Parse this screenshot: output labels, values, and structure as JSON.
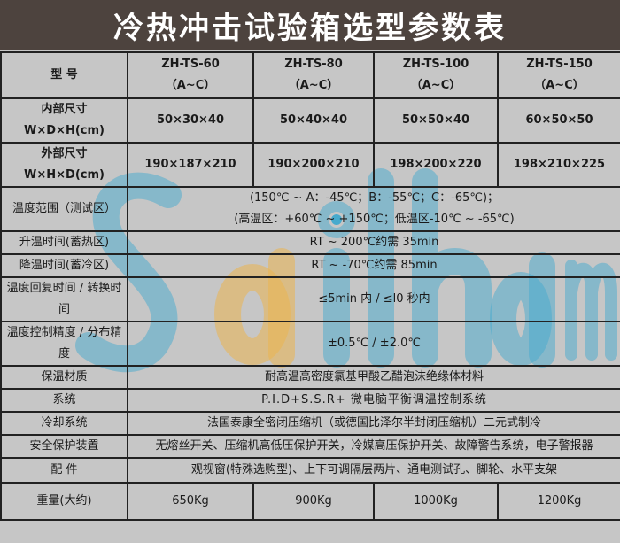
{
  "title": "冷热冲击试验箱选型参数表",
  "watermark_logo": "Sailham",
  "colors": {
    "title_bg": "#4d433e",
    "table_bg": "#c6c6c6",
    "watermark_blue": "#46aacd",
    "watermark_orange": "#ebb450"
  },
  "header": {
    "label": "型 号",
    "models": [
      {
        "name": "ZH-TS-60",
        "variant": "（A~C）"
      },
      {
        "name": "ZH-TS-80",
        "variant": "（A~C）"
      },
      {
        "name": "ZH-TS-100",
        "variant": "（A~C）"
      },
      {
        "name": "ZH-TS-150",
        "variant": "（A~C）"
      }
    ]
  },
  "inner_size": {
    "label1": "内部尺寸",
    "label2": "W×D×H(cm)",
    "values": [
      "50×30×40",
      "50×40×40",
      "50×50×40",
      "60×50×50"
    ]
  },
  "outer_size": {
    "label1": "外部尺寸",
    "label2": "W×H×D(cm)",
    "values": [
      "190×187×210",
      "190×200×210",
      "198×200×220",
      "198×210×225"
    ]
  },
  "rows": [
    {
      "label": "温度范围（测试区）",
      "lines": [
        "(150℃ ~ A：-45℃；B：-55℃；C：-65℃)；",
        "(高温区：+60℃ ~ +150℃；低温区-10℃ ~ -65℃)"
      ]
    },
    {
      "label": "升温时间(蓄热区)",
      "lines": [
        "RT ~ 200℃约需 35min"
      ]
    },
    {
      "label": "降温时间(蓄冷区)",
      "lines": [
        "RT ~ -70℃约需 85min"
      ]
    },
    {
      "label": "温度回复时间 / 转换时间",
      "lines": [
        "≤5min 内 / ≤l0 秒内"
      ]
    },
    {
      "label": "温度控制精度 / 分布精度",
      "lines": [
        "±0.5℃ / ±2.0℃"
      ]
    },
    {
      "label": "保温材质",
      "lines": [
        "耐高温高密度氯基甲酸乙醋泡沫绝缘体材料"
      ]
    },
    {
      "label": "系统",
      "lines": [
        "P.I.D+S.S.R+ 微电脑平衡调温控制系统"
      ]
    },
    {
      "label": "冷却系统",
      "lines": [
        "法国泰康全密闭压缩机（或德国比泽尔半封闭压缩机）二元式制冷"
      ]
    },
    {
      "label": "安全保护装置",
      "lines": [
        "无熔丝开关、压缩机高低压保护开关，冷媒高压保护开关、故障警告系统，电子警报器"
      ]
    },
    {
      "label": "配 件",
      "lines": [
        "观视窗(特殊选购型)、上下可调隔层两片、通电测试孔、脚轮、水平支架"
      ]
    }
  ],
  "weight": {
    "label": "重量(大约)",
    "values": [
      "650Kg",
      "900Kg",
      "1000Kg",
      "1200Kg"
    ]
  }
}
